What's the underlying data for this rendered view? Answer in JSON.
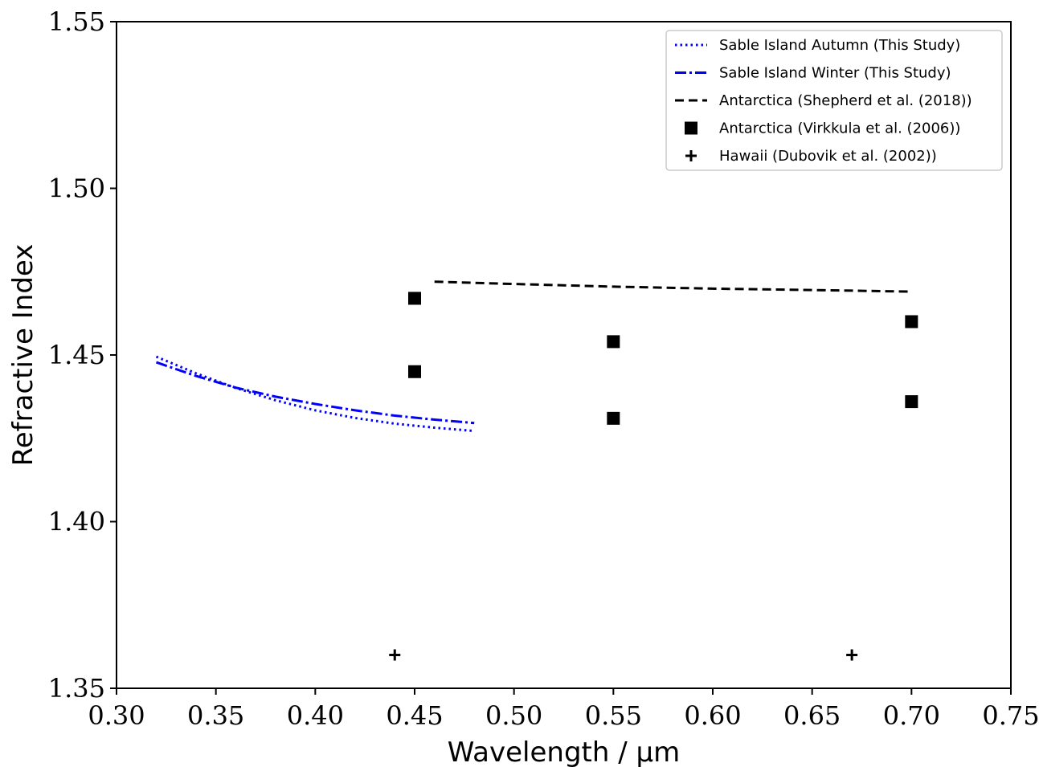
{
  "chart_data": {
    "type": "line",
    "xlabel": "Wavelength / μm",
    "ylabel": "Refractive Index",
    "xlim": [
      0.3,
      0.75
    ],
    "ylim": [
      1.35,
      1.55
    ],
    "xticks": [
      "0.30",
      "0.35",
      "0.40",
      "0.45",
      "0.50",
      "0.55",
      "0.60",
      "0.65",
      "0.70",
      "0.75"
    ],
    "yticks": [
      "1.35",
      "1.40",
      "1.45",
      "1.50",
      "1.55"
    ],
    "grid": false,
    "legend_position": "top-right",
    "series": [
      {
        "name": "Sable Island Autumn (This Study)",
        "kind": "line",
        "style": "dotted",
        "color": "#0000ff",
        "x": [
          0.32,
          0.34,
          0.36,
          0.38,
          0.4,
          0.42,
          0.44,
          0.46,
          0.48
        ],
        "y": [
          1.4495,
          1.4445,
          1.4401,
          1.4364,
          1.4334,
          1.4311,
          1.4294,
          1.4282,
          1.4272
        ]
      },
      {
        "name": "Sable Island Winter (This Study)",
        "kind": "line",
        "style": "dashdot",
        "color": "#0000ff",
        "x": [
          0.32,
          0.34,
          0.36,
          0.38,
          0.4,
          0.42,
          0.44,
          0.46,
          0.48
        ],
        "y": [
          1.4478,
          1.4437,
          1.4402,
          1.4375,
          1.4353,
          1.4334,
          1.4318,
          1.4306,
          1.4296
        ]
      },
      {
        "name": "Antarctica (Shepherd et al. (2018))",
        "kind": "line",
        "style": "dashed",
        "color": "#000000",
        "x": [
          0.46,
          0.5,
          0.55,
          0.6,
          0.65,
          0.7
        ],
        "y": [
          1.472,
          1.4713,
          1.4705,
          1.4699,
          1.4695,
          1.469
        ]
      },
      {
        "name": "Antarctica (Virkkula et al. (2006))",
        "kind": "scatter",
        "marker": "square",
        "color": "#000000",
        "x": [
          0.45,
          0.45,
          0.55,
          0.55,
          0.7,
          0.7
        ],
        "y": [
          1.467,
          1.445,
          1.454,
          1.431,
          1.46,
          1.436
        ]
      },
      {
        "name": "Hawaii (Dubovik et al. (2002))",
        "kind": "scatter",
        "marker": "plus",
        "color": "#000000",
        "x": [
          0.44,
          0.67
        ],
        "y": [
          1.36,
          1.36
        ]
      }
    ]
  }
}
